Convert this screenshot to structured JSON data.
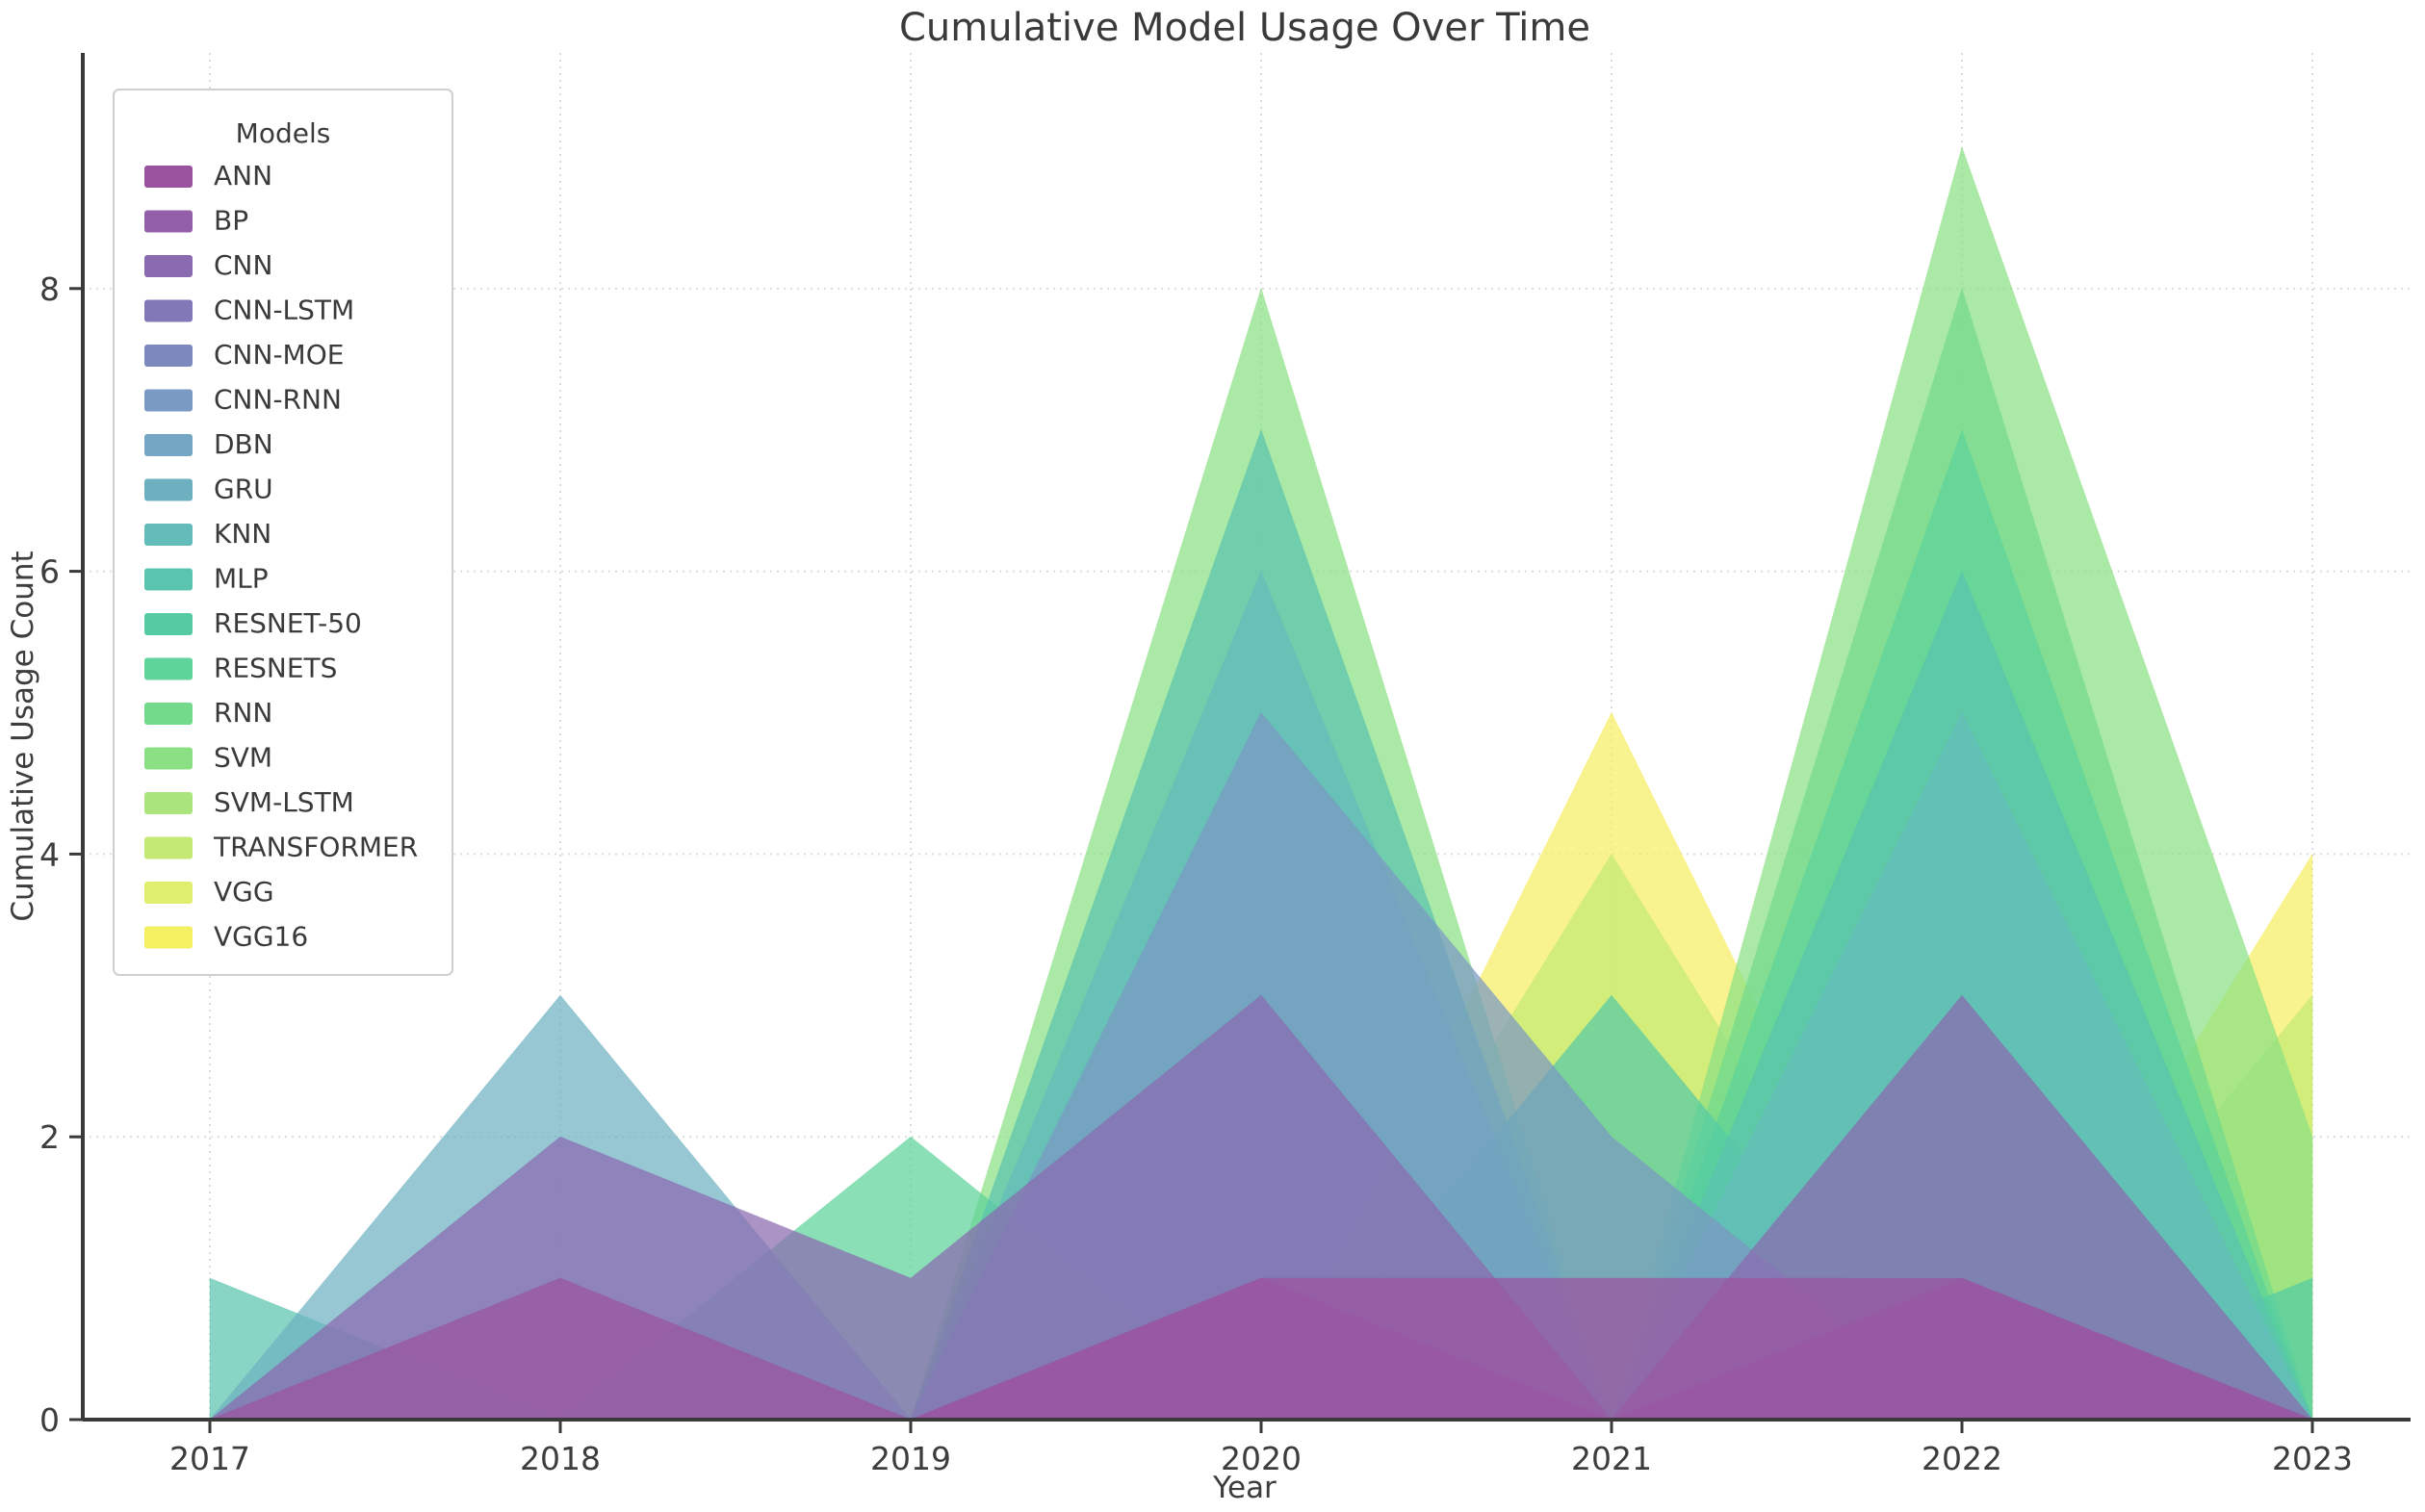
{
  "title": "Cumulative Model Usage Over Time",
  "axes": {
    "xlabel": "Year",
    "ylabel": "Cumulative Usage Count",
    "x_ticks": [
      "2017",
      "2018",
      "2019",
      "2020",
      "2021",
      "2022",
      "2023"
    ],
    "y_ticks": [
      "0",
      "2",
      "4",
      "6",
      "8"
    ],
    "y_tick_values": [
      0,
      2,
      4,
      6,
      8
    ]
  },
  "legend": {
    "title": "Models",
    "position": "upper left"
  },
  "colors": {
    "background": "#ffffff",
    "spine": "#3a3a3a",
    "grid": "#dcdcdc",
    "text": "#3d3d3d",
    "legend_border": "#cfcfcf",
    "legend_background": "#ffffff"
  },
  "chart_data": {
    "type": "area",
    "variant": "overlapping-translucent-areas",
    "note": "Each model drawn as translucent area from baseline; purple-most series composited on top; values read from band boundaries",
    "title": "Cumulative Model Usage Over Time",
    "xlabel": "Year",
    "ylabel": "Cumulative Usage Count",
    "x": [
      2017,
      2018,
      2019,
      2020,
      2021,
      2022,
      2023
    ],
    "ylim": [
      0,
      9.65
    ],
    "grid": true,
    "legend_position": "upper left",
    "fill_alpha": 0.72,
    "series": [
      {
        "name": "ANN",
        "color": "#9b53a0",
        "values": [
          0,
          1,
          0,
          1,
          1,
          1,
          0
        ]
      },
      {
        "name": "BP",
        "color": "#935fa9",
        "values": [
          0,
          0,
          0,
          1,
          0,
          1,
          0
        ]
      },
      {
        "name": "CNN",
        "color": "#8a6ab0",
        "values": [
          0,
          2,
          1,
          3,
          0,
          3,
          0
        ]
      },
      {
        "name": "CNN-LSTM",
        "color": "#8277b7",
        "values": [
          0,
          0,
          0,
          0,
          0,
          0,
          0
        ]
      },
      {
        "name": "CNN-MOE",
        "color": "#7d88be",
        "values": [
          0,
          0,
          0,
          0,
          0,
          0,
          0
        ]
      },
      {
        "name": "CNN-RNN",
        "color": "#7a99c3",
        "values": [
          0,
          0,
          0,
          5,
          2,
          0,
          0
        ]
      },
      {
        "name": "DBN",
        "color": "#75a6c4",
        "values": [
          0,
          0,
          0,
          0,
          0,
          0,
          0
        ]
      },
      {
        "name": "GRU",
        "color": "#6db1c1",
        "values": [
          0,
          3,
          0,
          0,
          0,
          0,
          0
        ]
      },
      {
        "name": "KNN",
        "color": "#64bcba",
        "values": [
          0,
          0,
          0,
          6,
          0,
          5,
          0
        ]
      },
      {
        "name": "MLP",
        "color": "#5ac4af",
        "values": [
          1,
          0,
          0,
          7,
          0,
          6,
          0
        ]
      },
      {
        "name": "RESNET-50",
        "color": "#55cba4",
        "values": [
          0,
          0,
          0,
          0,
          3,
          0,
          1
        ]
      },
      {
        "name": "RESNETS",
        "color": "#5ed39a",
        "values": [
          0,
          0,
          2,
          0,
          0,
          7,
          0
        ]
      },
      {
        "name": "RNN",
        "color": "#73da8c",
        "values": [
          0,
          0,
          0,
          0,
          0,
          8,
          0
        ]
      },
      {
        "name": "SVM",
        "color": "#8be083",
        "values": [
          0,
          0,
          0,
          8,
          0,
          9,
          2
        ]
      },
      {
        "name": "SVM-LSTM",
        "color": "#a9e57c",
        "values": [
          0,
          0,
          0,
          0,
          0,
          0,
          0
        ]
      },
      {
        "name": "TRANSFORMER",
        "color": "#c5ea74",
        "values": [
          0,
          0,
          0,
          0,
          4,
          0,
          3
        ]
      },
      {
        "name": "VGG",
        "color": "#dfee6c",
        "values": [
          0,
          0,
          0,
          0,
          0,
          0,
          0
        ]
      },
      {
        "name": "VGG16",
        "color": "#f5ef62",
        "values": [
          0,
          0,
          0,
          0,
          5,
          0,
          4
        ]
      }
    ]
  }
}
